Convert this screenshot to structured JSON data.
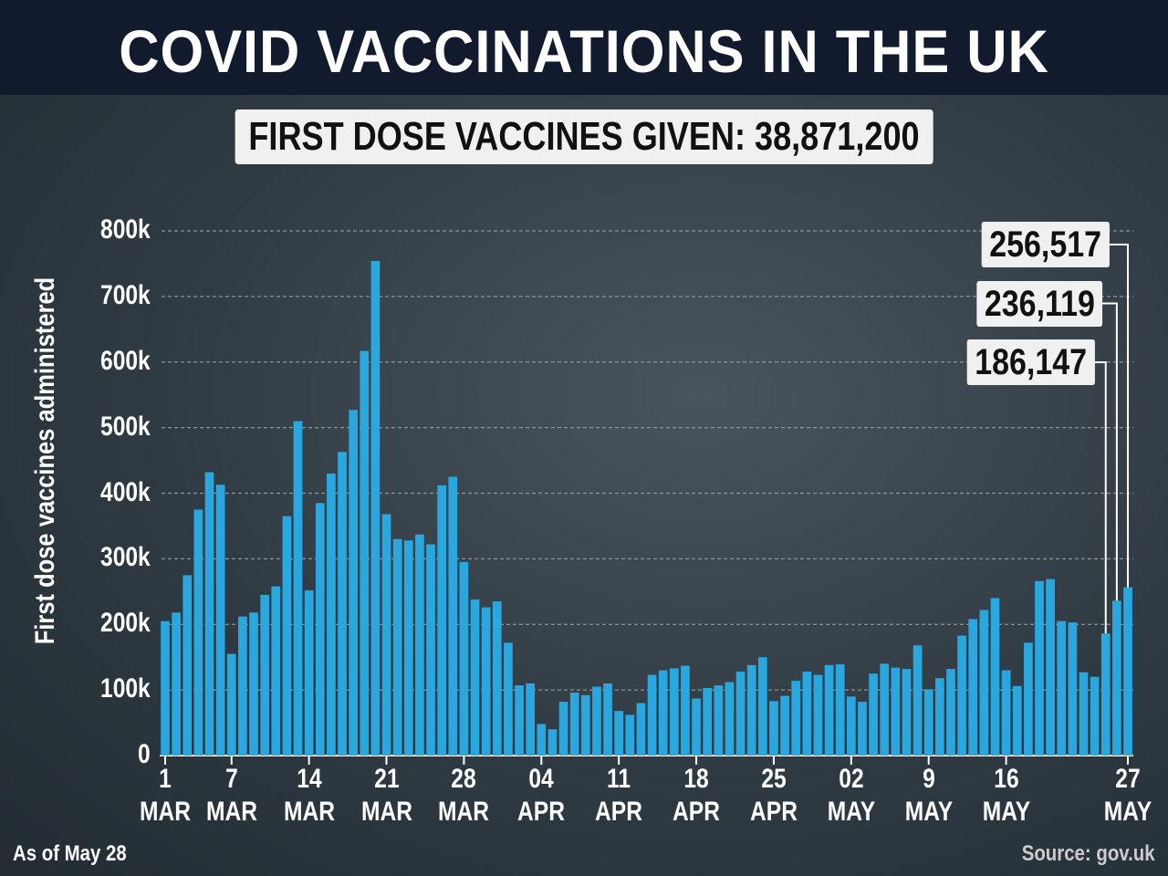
{
  "chart_data": {
    "type": "bar",
    "title": "COVID VACCINATIONS IN THE UK",
    "subtitle": "FIRST DOSE VACCINES GIVEN: 38,871,200",
    "ylabel": "First dose vaccines administered",
    "note": "As of May 28",
    "source": "Source: gov.uk",
    "color": "#2aa7df",
    "grid": true,
    "ylim": [
      0,
      800000
    ],
    "yticks": [
      0,
      {
        "value": 100000,
        "label": "100k"
      },
      {
        "value": 200000,
        "label": "200k"
      },
      {
        "value": 300000,
        "label": "300k"
      },
      {
        "value": 400000,
        "label": "400k"
      },
      {
        "value": 500000,
        "label": "500k"
      },
      {
        "value": 600000,
        "label": "600k"
      },
      {
        "value": 700000,
        "label": "700k"
      },
      {
        "value": 800000,
        "label": "800k"
      }
    ],
    "categories": [
      "1\nMAR",
      null,
      null,
      null,
      null,
      null,
      "7\nMAR",
      null,
      null,
      null,
      null,
      null,
      null,
      "14\nMAR",
      null,
      null,
      null,
      null,
      null,
      null,
      "21\nMAR",
      null,
      null,
      null,
      null,
      null,
      null,
      "28\nMAR",
      null,
      null,
      null,
      null,
      null,
      null,
      "04\nAPR",
      null,
      null,
      null,
      null,
      null,
      null,
      "11\nAPR",
      null,
      null,
      null,
      null,
      null,
      null,
      "18\nAPR",
      null,
      null,
      null,
      null,
      null,
      null,
      "25\nAPR",
      null,
      null,
      null,
      null,
      null,
      null,
      "02\nMAY",
      null,
      null,
      null,
      null,
      null,
      null,
      "9\nMAY",
      null,
      null,
      null,
      null,
      null,
      null,
      "16\nMAY",
      null,
      null,
      null,
      null,
      null,
      null,
      null,
      null,
      null,
      null,
      "27\nMAY"
    ],
    "values": [
      205000,
      218000,
      275000,
      375000,
      432000,
      413000,
      155000,
      212000,
      218000,
      245000,
      258000,
      365000,
      510000,
      252000,
      385000,
      430000,
      463000,
      527000,
      617000,
      754000,
      368000,
      330000,
      328000,
      337000,
      322000,
      412000,
      425000,
      295000,
      238000,
      226000,
      235000,
      172000,
      107000,
      110000,
      48000,
      40000,
      82000,
      96000,
      92000,
      105000,
      110000,
      68000,
      62000,
      80000,
      123000,
      130000,
      133000,
      137000,
      87000,
      103000,
      107000,
      112000,
      128000,
      138000,
      150000,
      83000,
      91000,
      114000,
      128000,
      123000,
      138000,
      139000,
      90000,
      82000,
      125000,
      140000,
      134000,
      132000,
      168000,
      101000,
      118000,
      132000,
      183000,
      208000,
      222000,
      240000,
      130000,
      106000,
      172000,
      266000,
      269000,
      205000,
      203000,
      127000,
      120000,
      186147,
      236119,
      256517
    ],
    "value_labels": [
      null,
      null,
      null,
      null,
      null,
      null,
      null,
      null,
      null,
      null,
      null,
      null,
      null,
      null,
      null,
      null,
      null,
      null,
      null,
      null,
      null,
      null,
      null,
      null,
      null,
      null,
      null,
      null,
      null,
      null,
      null,
      null,
      null,
      null,
      null,
      null,
      null,
      null,
      null,
      null,
      null,
      null,
      null,
      null,
      null,
      null,
      null,
      null,
      null,
      null,
      null,
      null,
      null,
      null,
      null,
      null,
      null,
      null,
      null,
      null,
      null,
      null,
      null,
      null,
      null,
      null,
      null,
      null,
      null,
      null,
      null,
      null,
      null,
      null,
      null,
      null,
      null,
      null,
      null,
      null,
      null,
      null,
      null,
      null,
      null,
      "186,147",
      "236,119",
      "256,517"
    ]
  }
}
